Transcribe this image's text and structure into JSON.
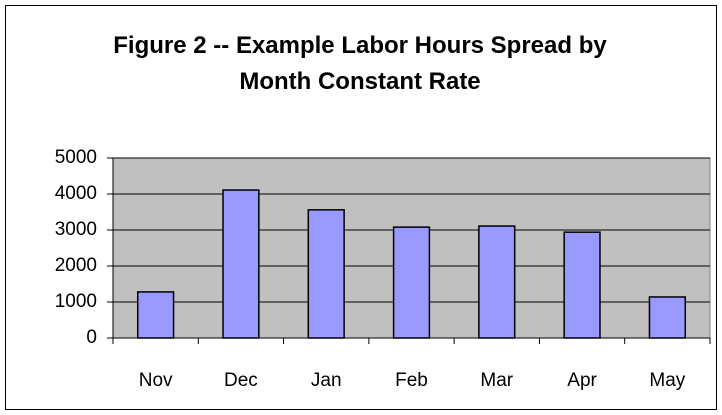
{
  "chart_data": {
    "type": "bar",
    "title": "Figure 2 -- Example Labor Hours Spread by Month Constant Rate",
    "categories": [
      "Nov",
      "Dec",
      "Jan",
      "Feb",
      "Mar",
      "Apr",
      "May"
    ],
    "values": [
      1280,
      4110,
      3560,
      3080,
      3110,
      2940,
      1140
    ],
    "color": "#9999ff",
    "plot_background": "#c0c0c0",
    "ylim": [
      0,
      5000
    ],
    "yticks": [
      0,
      1000,
      2000,
      3000,
      4000,
      5000
    ],
    "grid": true
  }
}
